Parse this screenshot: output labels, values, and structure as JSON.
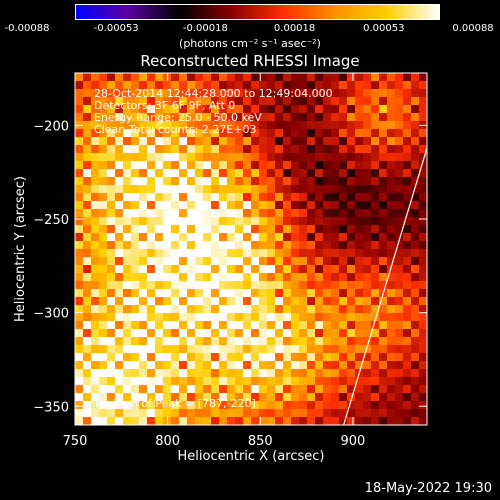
{
  "colorbar": {
    "colors": [
      "#0000ff",
      "#5a00a0",
      "#000000",
      "#8a0000",
      "#ff3000",
      "#ff9000",
      "#ffd000",
      "#ffffff"
    ],
    "ticks": [
      "-0.00088",
      "-0.00053",
      "-0.00018",
      "0.00018",
      "0.00053",
      "0.00088"
    ],
    "units": "(photons cm⁻² s⁻¹ asec⁻²)"
  },
  "chart_data": {
    "type": "heatmap",
    "title": "Reconstructed RHESSI Image",
    "xlabel": "Heliocentric X (arcsec)",
    "ylabel": "Heliocentric Y (arcsec)",
    "xlim": [
      750,
      940
    ],
    "ylim": [
      -360,
      -172
    ],
    "xticks": [
      750,
      800,
      850,
      900
    ],
    "yticks": [
      -200,
      -250,
      -300,
      -350
    ],
    "value_range": [
      -0.00088,
      0.00088
    ],
    "peak": [
      787,
      -220
    ],
    "limb_line": [
      [
        895,
        -365
      ],
      [
        940,
        -212
      ]
    ],
    "annotations": [
      "28-Oct-2014 12:44:28.000 to 12:49:04.000",
      "Detectors: 3F 6F 9F, Att 0",
      "Energy Range: 25.0 - 50.0 keV",
      "Clean    Total counts: 2.27E+03"
    ],
    "peak_label": "Position of Peak = [787,-220]"
  },
  "footer": "18-May-2022 19:30"
}
